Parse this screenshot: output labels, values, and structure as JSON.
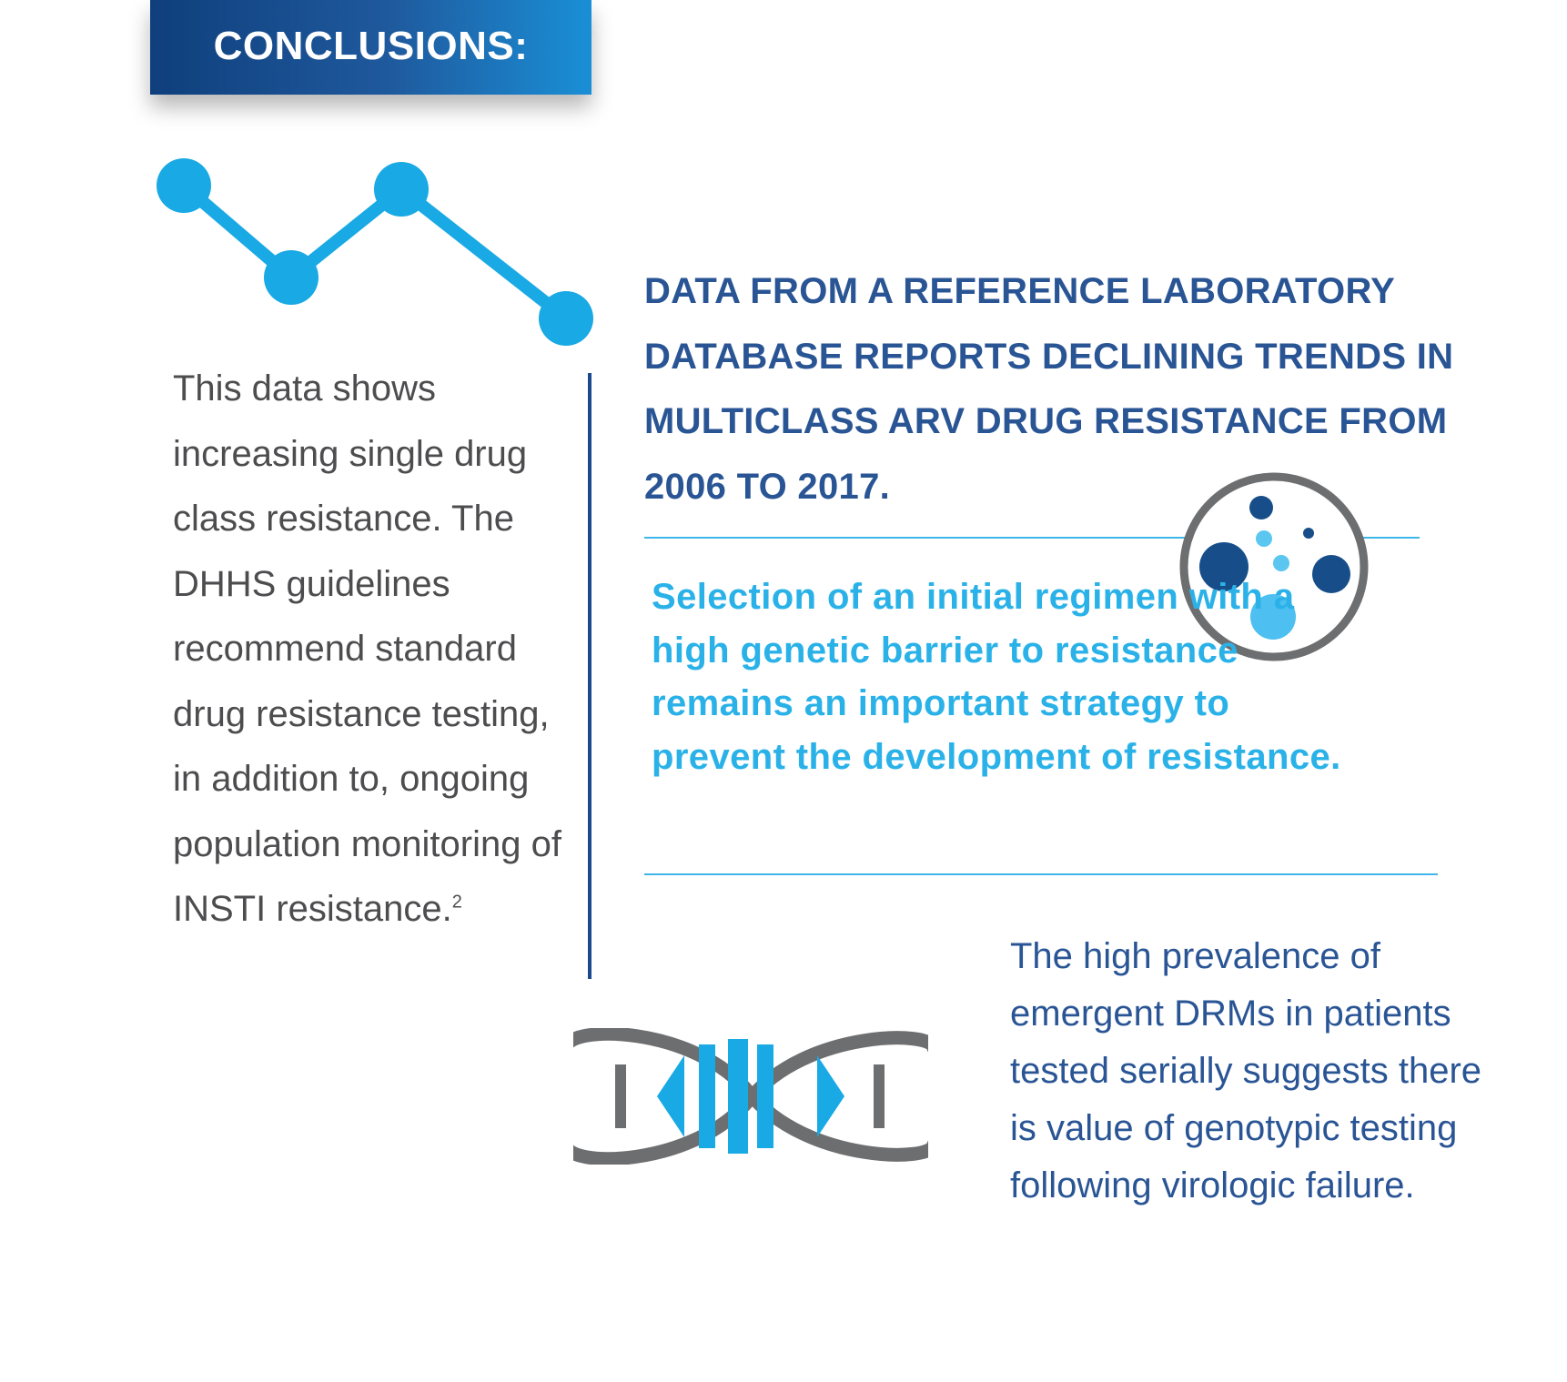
{
  "header": {
    "title": "CONCLUSIONS:"
  },
  "left_column": {
    "body": "This data shows increasing single drug class resistance. The DHHS guidelines recommend standard drug resistance testing, in addition to, ongoing population monitoring of INSTI resistance.",
    "footnote": "2"
  },
  "headline": {
    "text": "DATA FROM A REFERENCE LABORATORY DATABASE REPORTS DECLINING TRENDS IN MULTICLASS ARV DRUG RESISTANCE FROM 2006 TO 2017."
  },
  "highlight": {
    "text": "Selection of an initial regimen with a high genetic barrier to resistance remains an important strategy to prevent the development of resistance."
  },
  "bottom_right": {
    "text": "The high prevalence of emergent DRMs in patients tested serially suggests there is value of genotypic testing following virologic failure."
  },
  "icons": {
    "trend": "line-trend-icon",
    "petri": "petri-dish-icon",
    "dna": "dna-helix-icon"
  },
  "colors": {
    "banner_dark": "#0f3f7c",
    "banner_light": "#1a8fd6",
    "navy_text": "#2a5595",
    "cyan_accent": "#2ab2e8",
    "body_gray": "#4d4d4f",
    "icon_gray": "#6d6e70"
  }
}
